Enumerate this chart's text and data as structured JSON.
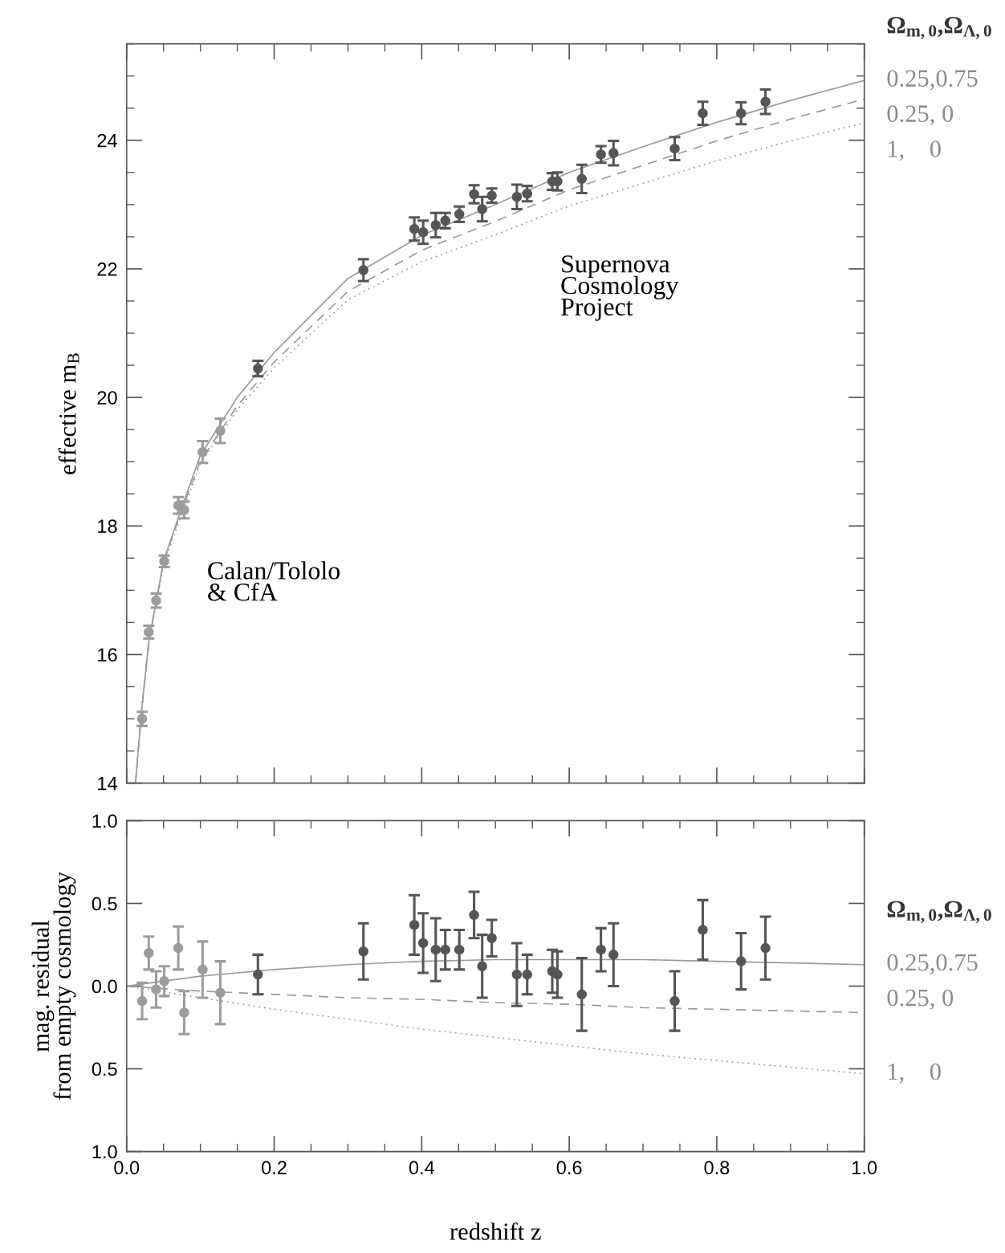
{
  "chart_data": [
    {
      "type": "scatter",
      "ylabel": "effective m$_{B}$",
      "xlim": [
        0,
        1
      ],
      "ylim": [
        14,
        25.5
      ],
      "xticks": [
        {
          "value": 0,
          "label": null
        },
        {
          "value": 0.2,
          "label": null
        },
        {
          "value": 0.4,
          "label": null
        },
        {
          "value": 0.6,
          "label": null
        },
        {
          "value": 0.8,
          "label": null
        },
        {
          "value": 1,
          "label": null
        }
      ],
      "yticks": [
        14,
        16,
        18,
        20,
        22,
        24
      ],
      "tick_labels": "y",
      "legend": "right",
      "legend_title": "Ω$_{m,0}$,Ω$_{Λ,0}$",
      "annotations": [
        "Supernova\nCosmology\nProject",
        "Calan/Tololo\n& CfA"
      ],
      "series": [
        {
          "type": "line",
          "name": "0.25,0.75",
          "color": "#9a9a9a",
          "line_style": "solid",
          "x": [
            0.012,
            0.02,
            0.03,
            0.05,
            0.075,
            0.1,
            0.15,
            0.2,
            0.3,
            0.4,
            0.5,
            0.6,
            0.7,
            0.8,
            0.9,
            1.0
          ],
          "values": [
            14.0,
            15.1,
            16.2,
            17.45,
            18.3,
            19.1,
            20.0,
            20.7,
            21.85,
            22.52,
            23.0,
            23.5,
            23.9,
            24.28,
            24.62,
            24.93
          ]
        },
        {
          "type": "line",
          "name": "0.25, 0",
          "color": "#9a9a9a",
          "line_style": "dashed",
          "x": [
            0.012,
            0.02,
            0.03,
            0.05,
            0.075,
            0.1,
            0.15,
            0.2,
            0.3,
            0.4,
            0.5,
            0.6,
            0.7,
            0.8,
            0.9,
            1.0
          ],
          "values": [
            14.0,
            15.1,
            16.19,
            17.43,
            18.26,
            19.01,
            19.87,
            20.55,
            21.65,
            22.29,
            22.74,
            23.23,
            23.61,
            23.99,
            24.33,
            24.64
          ]
        },
        {
          "type": "line",
          "name": "1,    0",
          "color": "#9a9a9a",
          "line_style": "dotted",
          "x": [
            0.012,
            0.02,
            0.03,
            0.05,
            0.075,
            0.1,
            0.15,
            0.2,
            0.3,
            0.4,
            0.5,
            0.6,
            0.7,
            0.8,
            0.9,
            1.0
          ],
          "values": [
            14.0,
            15.08,
            16.17,
            17.39,
            18.2,
            18.97,
            19.81,
            20.46,
            21.52,
            22.11,
            22.53,
            22.98,
            23.33,
            23.68,
            23.99,
            24.27
          ]
        },
        {
          "marker": "circle",
          "color": "#9c9c9c",
          "x": [
            0.021,
            0.03,
            0.04,
            0.051,
            0.07,
            0.078,
            0.103,
            0.127
          ],
          "values": [
            15.0,
            16.35,
            16.84,
            17.45,
            18.32,
            18.25,
            19.15,
            19.48
          ],
          "errors": [
            0.11,
            0.1,
            0.11,
            0.09,
            0.13,
            0.13,
            0.17,
            0.19
          ]
        },
        {
          "marker": "circle",
          "color": "#555555",
          "x": [
            0.178,
            0.321,
            0.39,
            0.402,
            0.419,
            0.432,
            0.451,
            0.471,
            0.482,
            0.495,
            0.529,
            0.543,
            0.577,
            0.584,
            0.617,
            0.643,
            0.66,
            0.743,
            0.781,
            0.833,
            0.866
          ],
          "values": [
            20.45,
            21.98,
            22.62,
            22.57,
            22.68,
            22.75,
            22.85,
            23.16,
            22.93,
            23.14,
            23.12,
            23.17,
            23.36,
            23.36,
            23.4,
            23.78,
            23.8,
            23.87,
            24.42,
            24.42,
            24.6
          ],
          "errors": [
            0.12,
            0.17,
            0.18,
            0.18,
            0.19,
            0.12,
            0.12,
            0.14,
            0.19,
            0.11,
            0.19,
            0.12,
            0.13,
            0.14,
            0.22,
            0.13,
            0.19,
            0.18,
            0.18,
            0.17,
            0.19
          ]
        }
      ]
    },
    {
      "type": "scatter",
      "xlabel": "redshift z",
      "ylabel": "mag. residual\nfrom empty cosmology",
      "xlim": [
        0,
        1
      ],
      "ylim": [
        -1,
        1
      ],
      "xticks": [
        {
          "value": 0,
          "label": "0.0"
        },
        {
          "value": 0.2,
          "label": "0.2"
        },
        {
          "value": 0.4,
          "label": "0.4"
        },
        {
          "value": 0.6,
          "label": "0.6"
        },
        {
          "value": 0.8,
          "label": "0.8"
        },
        {
          "value": 1,
          "label": "1.0"
        }
      ],
      "yticks": [
        {
          "value": -1,
          "label": "1.0"
        },
        {
          "value": -0.5,
          "label": "0.5"
        },
        {
          "value": 0,
          "label": "0.0"
        },
        {
          "value": 0.5,
          "label": "0.5"
        },
        {
          "value": 1,
          "label": "1.0"
        }
      ],
      "legend": "right",
      "legend_title": "Ω$_{m,0}$,Ω$_{Λ,0}$",
      "series": [
        {
          "type": "line",
          "name": "0.25,0.75",
          "color": "#9a9a9a",
          "line_style": "solid",
          "x": [
            0,
            0.1,
            0.2,
            0.3,
            0.4,
            0.5,
            0.6,
            0.7,
            0.8,
            0.9,
            1.0
          ],
          "values": [
            0,
            0.06,
            0.1,
            0.13,
            0.15,
            0.16,
            0.16,
            0.16,
            0.15,
            0.14,
            0.13
          ]
        },
        {
          "type": "line",
          "name": "0.25, 0",
          "color": "#9a9a9a",
          "line_style": "dashed",
          "x": [
            0,
            0.1,
            0.2,
            0.3,
            0.4,
            0.5,
            0.6,
            0.7,
            0.8,
            0.9,
            1.0
          ],
          "values": [
            0,
            -0.03,
            -0.05,
            -0.07,
            -0.08,
            -0.1,
            -0.11,
            -0.13,
            -0.14,
            -0.15,
            -0.16
          ]
        },
        {
          "type": "line",
          "name": "1,    0",
          "color": "#9a9a9a",
          "line_style": "dotted",
          "x": [
            0,
            0.1,
            0.2,
            0.3,
            0.4,
            0.5,
            0.6,
            0.7,
            0.8,
            0.9,
            1.0
          ],
          "values": [
            0,
            -0.07,
            -0.14,
            -0.2,
            -0.26,
            -0.31,
            -0.36,
            -0.41,
            -0.45,
            -0.49,
            -0.53
          ]
        },
        {
          "marker": "circle",
          "color": "#9c9c9c",
          "x": [
            0.021,
            0.03,
            0.04,
            0.051,
            0.07,
            0.078,
            0.103,
            0.127
          ],
          "values": [
            -0.09,
            0.2,
            -0.02,
            0.03,
            0.23,
            -0.16,
            0.1,
            -0.04
          ],
          "errors": [
            0.11,
            0.1,
            0.11,
            0.09,
            0.13,
            0.13,
            0.17,
            0.19
          ]
        },
        {
          "marker": "circle",
          "color": "#555555",
          "x": [
            0.178,
            0.321,
            0.39,
            0.402,
            0.419,
            0.432,
            0.451,
            0.471,
            0.482,
            0.495,
            0.529,
            0.543,
            0.577,
            0.584,
            0.617,
            0.643,
            0.66,
            0.743,
            0.781,
            0.833,
            0.866
          ],
          "values": [
            0.07,
            0.21,
            0.37,
            0.26,
            0.22,
            0.22,
            0.22,
            0.43,
            0.12,
            0.29,
            0.07,
            0.07,
            0.09,
            0.07,
            -0.05,
            0.22,
            0.19,
            -0.09,
            0.34,
            0.15,
            0.23
          ],
          "errors": [
            0.12,
            0.17,
            0.18,
            0.18,
            0.19,
            0.12,
            0.12,
            0.14,
            0.19,
            0.11,
            0.19,
            0.12,
            0.13,
            0.14,
            0.22,
            0.13,
            0.19,
            0.18,
            0.18,
            0.17,
            0.19
          ]
        }
      ]
    }
  ]
}
